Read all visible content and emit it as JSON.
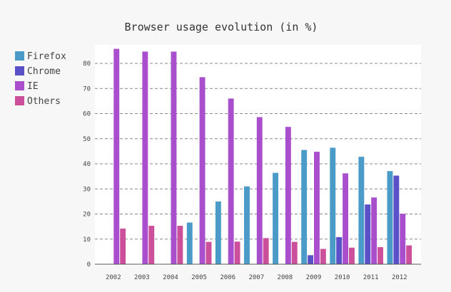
{
  "chart_data": {
    "type": "bar",
    "title": "Browser usage evolution (in %)",
    "xlabel": "",
    "ylabel": "",
    "categories": [
      "2002",
      "2003",
      "2004",
      "2005",
      "2006",
      "2007",
      "2008",
      "2009",
      "2010",
      "2011",
      "2012"
    ],
    "ylim": [
      0,
      88
    ],
    "yticks": [
      "0",
      "10",
      "20",
      "30",
      "40",
      "50",
      "60",
      "70",
      "80"
    ],
    "grid": "horizontal dashed",
    "legend_position": "top-left",
    "series": [
      {
        "name": "Firefox",
        "color": "#4b9bc8",
        "values": [
          0,
          0,
          0,
          16.6,
          25,
          31,
          36.4,
          45.5,
          46.4,
          42.8,
          37.1
        ]
      },
      {
        "name": "Chrome",
        "color": "#5a50c8",
        "values": [
          0,
          0,
          0,
          0,
          0,
          0,
          0,
          3.6,
          10.8,
          23.8,
          35.3
        ]
      },
      {
        "name": "IE",
        "color": "#a94fcd",
        "values": [
          85.8,
          84.7,
          84.7,
          74.5,
          66,
          58.6,
          54.7,
          44.8,
          36.2,
          26.6,
          20.1
        ]
      },
      {
        "name": "Others",
        "color": "#cc4f9c",
        "values": [
          14.2,
          15.3,
          15.3,
          8.9,
          9,
          10.4,
          8.9,
          6.1,
          6.6,
          6.8,
          7.5
        ]
      }
    ]
  }
}
